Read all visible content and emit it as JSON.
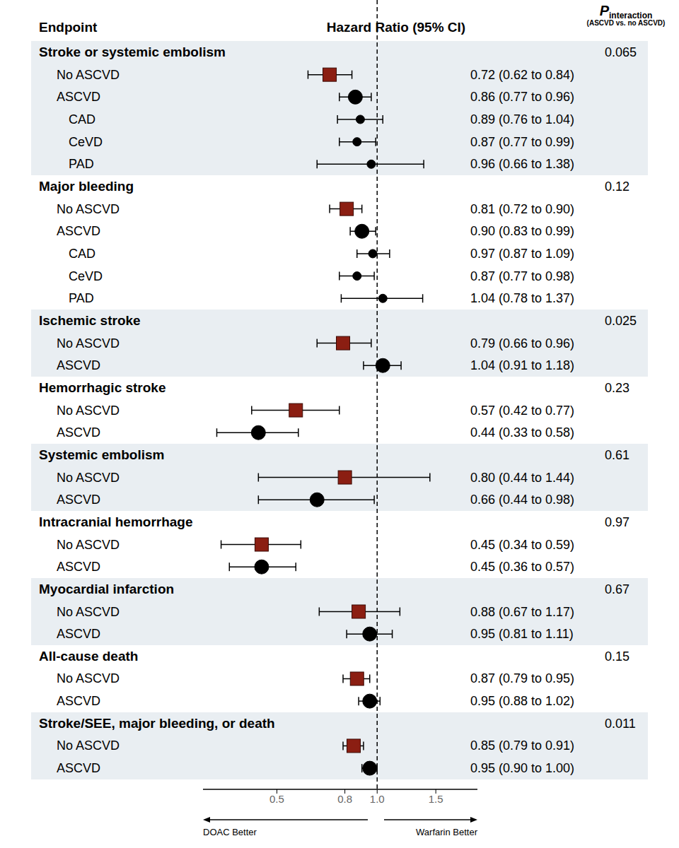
{
  "chart_data": {
    "type": "forest",
    "header": {
      "endpoint": "Endpoint",
      "estimate": "Hazard Ratio (95% CI)",
      "p": "P",
      "p_sub": "interaction",
      "p_note": "(ASCVD vs. no ASCVD)"
    },
    "x_label_left": "DOAC Better",
    "x_label_right": "Warfarin Better",
    "log": "x",
    "xlim": [
      0.3,
      2.0
    ],
    "xticks": [
      0.5,
      0.8,
      {
        "value": 1.0,
        "label": "1.0"
      },
      1.5
    ],
    "reference_line": 1.0,
    "groups": [
      {
        "name": "Stroke or systemic embolism",
        "p_interaction": 0.065,
        "rows": [
          {
            "name": "No ASCVD",
            "color": "#8b1e12",
            "marker": "square",
            "value": 0.72,
            "ci": [
              0.62,
              0.84
            ],
            "value_label": "0.72 (0.62 to 0.84)"
          },
          {
            "name": "ASCVD",
            "color": "#000000",
            "marker": "circle",
            "value": 0.86,
            "ci": [
              0.77,
              0.96
            ],
            "value_label": "0.86 (0.77 to 0.96)",
            "subgroups": [
              {
                "name": "CAD",
                "color": "#000000",
                "marker": "circle",
                "value": 0.89,
                "ci": [
                  0.76,
                  1.04
                ],
                "value_label": "0.89 (0.76 to 1.04)"
              },
              {
                "name": "CeVD",
                "color": "#000000",
                "marker": "circle",
                "value": 0.87,
                "ci": [
                  0.77,
                  0.99
                ],
                "value_label": "0.87 (0.77 to 0.99)"
              },
              {
                "name": "PAD",
                "color": "#000000",
                "marker": "circle",
                "value": 0.96,
                "ci": [
                  0.66,
                  1.38
                ],
                "value_label": "0.96 (0.66 to 1.38)"
              }
            ]
          }
        ]
      },
      {
        "name": "Major bleeding",
        "p_interaction": 0.12,
        "rows": [
          {
            "name": "No ASCVD",
            "color": "#8b1e12",
            "marker": "square",
            "value": 0.81,
            "ci": [
              0.72,
              0.9
            ],
            "value_label": "0.81 (0.72 to 0.90)"
          },
          {
            "name": "ASCVD",
            "color": "#000000",
            "marker": "circle",
            "value": 0.9,
            "ci": [
              0.83,
              0.99
            ],
            "value_label": "0.90 (0.83 to 0.99)",
            "subgroups": [
              {
                "name": "CAD",
                "color": "#000000",
                "marker": "circle",
                "value": 0.97,
                "ci": [
                  0.87,
                  1.09
                ],
                "value_label": "0.97 (0.87 to 1.09)"
              },
              {
                "name": "CeVD",
                "color": "#000000",
                "marker": "circle",
                "value": 0.87,
                "ci": [
                  0.77,
                  0.98
                ],
                "value_label": "0.87 (0.77 to 0.98)"
              },
              {
                "name": "PAD",
                "color": "#000000",
                "marker": "circle",
                "value": 1.04,
                "ci": [
                  0.78,
                  1.37
                ],
                "value_label": "1.04 (0.78 to 1.37)"
              }
            ]
          }
        ]
      },
      {
        "name": "Ischemic stroke",
        "p_interaction": 0.025,
        "rows": [
          {
            "name": "No ASCVD",
            "color": "#8b1e12",
            "marker": "square",
            "value": 0.79,
            "ci": [
              0.66,
              0.96
            ],
            "value_label": "0.79 (0.66 to 0.96)"
          },
          {
            "name": "ASCVD",
            "color": "#000000",
            "marker": "circle",
            "value": 1.04,
            "ci": [
              0.91,
              1.18
            ],
            "value_label": "1.04 (0.91 to 1.18)"
          }
        ]
      },
      {
        "name": "Hemorrhagic stroke",
        "p_interaction": 0.23,
        "rows": [
          {
            "name": "No ASCVD",
            "color": "#8b1e12",
            "marker": "square",
            "value": 0.57,
            "ci": [
              0.42,
              0.77
            ],
            "value_label": "0.57 (0.42 to 0.77)"
          },
          {
            "name": "ASCVD",
            "color": "#000000",
            "marker": "circle",
            "value": 0.44,
            "ci": [
              0.33,
              0.58
            ],
            "value_label": "0.44 (0.33 to 0.58)"
          }
        ]
      },
      {
        "name": "Systemic embolism",
        "p_interaction": 0.61,
        "rows": [
          {
            "name": "No ASCVD",
            "color": "#8b1e12",
            "marker": "square",
            "value": 0.8,
            "ci": [
              0.44,
              1.44
            ],
            "value_label": "0.80 (0.44 to 1.44)"
          },
          {
            "name": "ASCVD",
            "color": "#000000",
            "marker": "circle",
            "value": 0.66,
            "ci": [
              0.44,
              0.98
            ],
            "value_label": "0.66 (0.44 to 0.98)"
          }
        ]
      },
      {
        "name": "Intracranial hemorrhage",
        "p_interaction": 0.97,
        "rows": [
          {
            "name": "No ASCVD",
            "color": "#8b1e12",
            "marker": "square",
            "value": 0.45,
            "ci": [
              0.34,
              0.59
            ],
            "value_label": "0.45 (0.34 to 0.59)"
          },
          {
            "name": "ASCVD",
            "color": "#000000",
            "marker": "circle",
            "value": 0.45,
            "ci": [
              0.36,
              0.57
            ],
            "value_label": "0.45 (0.36 to 0.57)"
          }
        ]
      },
      {
        "name": "Myocardial infarction",
        "p_interaction": 0.67,
        "rows": [
          {
            "name": "No ASCVD",
            "color": "#8b1e12",
            "marker": "square",
            "value": 0.88,
            "ci": [
              0.67,
              1.17
            ],
            "value_label": "0.88 (0.67 to 1.17)"
          },
          {
            "name": "ASCVD",
            "color": "#000000",
            "marker": "circle",
            "value": 0.95,
            "ci": [
              0.81,
              1.11
            ],
            "value_label": "0.95 (0.81 to 1.11)"
          }
        ]
      },
      {
        "name": "All-cause death",
        "p_interaction": 0.15,
        "rows": [
          {
            "name": "No ASCVD",
            "color": "#8b1e12",
            "marker": "square",
            "value": 0.87,
            "ci": [
              0.79,
              0.95
            ],
            "value_label": "0.87 (0.79 to 0.95)"
          },
          {
            "name": "ASCVD",
            "color": "#000000",
            "marker": "circle",
            "value": 0.95,
            "ci": [
              0.88,
              1.02
            ],
            "value_label": "0.95 (0.88 to 1.02)"
          }
        ]
      },
      {
        "name": "Stroke/SEE, major bleeding, or death",
        "p_interaction": 0.011,
        "rows": [
          {
            "name": "No ASCVD",
            "color": "#8b1e12",
            "marker": "square",
            "value": 0.85,
            "ci": [
              0.79,
              0.91
            ],
            "value_label": "0.85 (0.79 to 0.91)"
          },
          {
            "name": "ASCVD",
            "color": "#000000",
            "marker": "circle",
            "value": 0.95,
            "ci": [
              0.9,
              1.0
            ],
            "value_label": "0.95 (0.90 to 1.00)"
          }
        ]
      }
    ]
  }
}
